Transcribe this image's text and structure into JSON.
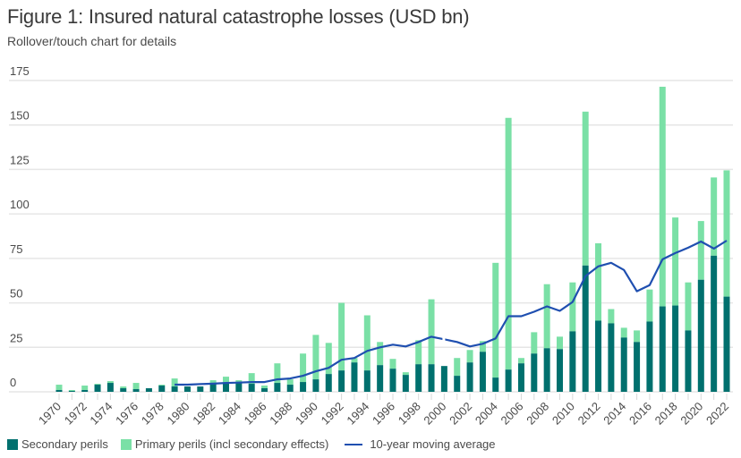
{
  "header": {
    "title": "Figure 1: Insured natural catastrophe losses (USD bn)",
    "subtitle": "Rollover/touch chart for details"
  },
  "colors": {
    "secondary": "#00706e",
    "primary": "#7ae0a6",
    "moving_average": "#1f4fb0",
    "grid": "#e6e6e6",
    "tick_text": "#4a4a4a"
  },
  "legend": [
    {
      "key": "secondary",
      "label": "Secondary perils",
      "type": "box"
    },
    {
      "key": "primary",
      "label": "Primary perils (incl secondary effects)",
      "type": "box"
    },
    {
      "key": "moving_average",
      "label": "10-year moving average",
      "type": "line"
    }
  ],
  "chart_data": {
    "type": "bar",
    "stacked": true,
    "title": "Figure 1: Insured natural catastrophe losses (USD bn)",
    "subtitle": "Rollover/touch chart for details",
    "xlabel": "",
    "ylabel": "",
    "ylim": [
      0,
      175
    ],
    "yticks": [
      0,
      25,
      50,
      75,
      100,
      125,
      150,
      175
    ],
    "grid": true,
    "legend_position": "bottom-left",
    "categories": [
      "1970",
      "1971",
      "1972",
      "1973",
      "1974",
      "1975",
      "1976",
      "1977",
      "1978",
      "1979",
      "1980",
      "1981",
      "1982",
      "1983",
      "1984",
      "1985",
      "1986",
      "1987",
      "1988",
      "1989",
      "1990",
      "1991",
      "1992",
      "1993",
      "1994",
      "1995",
      "1996",
      "1997",
      "1998",
      "1999",
      "2000",
      "2001",
      "2002",
      "2003",
      "2004",
      "2005",
      "2006",
      "2007",
      "2008",
      "2009",
      "2010",
      "2011",
      "2012",
      "2013",
      "2014",
      "2015",
      "2016",
      "2017",
      "2018",
      "2019",
      "2020",
      "2021",
      "2022"
    ],
    "xtick_labels": [
      "1970",
      "1972",
      "1974",
      "1976",
      "1978",
      "1980",
      "1982",
      "1984",
      "1986",
      "1988",
      "1990",
      "1992",
      "1994",
      "1996",
      "1998",
      "2000",
      "2002",
      "2004",
      "2006",
      "2008",
      "2010",
      "2012",
      "2014",
      "2016",
      "2018",
      "2020",
      "2022"
    ],
    "series": [
      {
        "name": "Secondary perils",
        "type": "bar",
        "values": [
          1,
          0.5,
          1,
          4,
          5,
          2,
          1.5,
          2,
          3.5,
          3,
          3,
          3,
          4.5,
          5,
          5.5,
          4.5,
          2,
          5,
          4,
          5.5,
          7,
          10,
          12,
          16.5,
          12,
          15,
          13,
          9.5,
          15.5,
          15.5,
          14.5,
          9,
          16.5,
          22.5,
          8,
          12.5,
          16,
          21.5,
          24.5,
          24,
          34,
          71,
          40,
          38.5,
          30.5,
          28,
          39.5,
          48,
          48.5,
          34.5,
          63,
          76.5,
          53.5
        ]
      },
      {
        "name": "Primary perils (incl secondary effects)",
        "type": "bar",
        "values": [
          3,
          0.5,
          2.5,
          0.5,
          1,
          1,
          3.5,
          0,
          0.5,
          4.5,
          0,
          0,
          2,
          3.5,
          1,
          6,
          1.5,
          11,
          3,
          16,
          25,
          17.5,
          38,
          2.5,
          31,
          13,
          5.5,
          1.5,
          13.5,
          36.5,
          0,
          10,
          7,
          6,
          64.5,
          141.5,
          3,
          12,
          36,
          7,
          27.5,
          86.5,
          43.5,
          8,
          5.5,
          6.5,
          18,
          123.5,
          49.5,
          27,
          33,
          44,
          71
        ]
      },
      {
        "name": "10-year moving average",
        "type": "line",
        "values": [
          null,
          null,
          null,
          null,
          null,
          null,
          null,
          null,
          null,
          4,
          4,
          4.3,
          4.6,
          5,
          5.2,
          5.5,
          5.5,
          7,
          7.5,
          9,
          11.5,
          13.5,
          18,
          19,
          23,
          25,
          26.5,
          25.5,
          28,
          31,
          29.5,
          28,
          25.5,
          27,
          30,
          42.5,
          42.5,
          45,
          48,
          45.5,
          50.5,
          65,
          70.5,
          72.5,
          68.5,
          56.5,
          60,
          74.5,
          78,
          81,
          84.5,
          80.5,
          85
        ]
      }
    ],
    "line_gap_at": [
      "2000"
    ]
  }
}
